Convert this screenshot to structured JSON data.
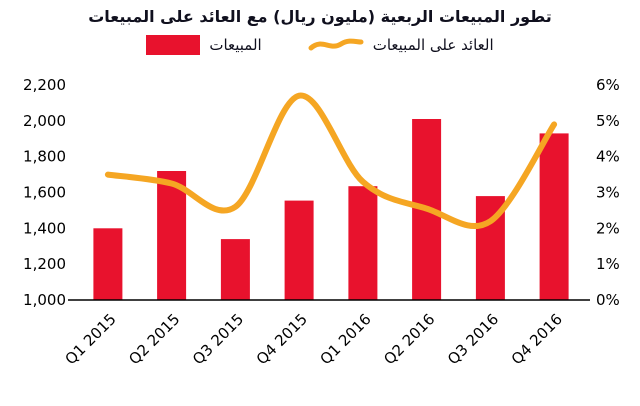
{
  "title": "تطور المبيعات الربعية (مليون ريال) مع العائد على المبيعات",
  "legend": {
    "sales_label": "المبيعات",
    "return_label": "العائد على المبيعات"
  },
  "chart_data": {
    "type": "combo-bar-line",
    "categories": [
      "Q1 2015",
      "Q2 2015",
      "Q3 2015",
      "Q4 2015",
      "Q1 2016",
      "Q2 2016",
      "Q3 2016",
      "Q4 2016"
    ],
    "series": [
      {
        "name": "المبيعات",
        "type": "bar",
        "axis": "left",
        "color": "#E8122D",
        "values": [
          1400,
          1720,
          1340,
          1555,
          1635,
          2010,
          1580,
          1930
        ]
      },
      {
        "name": "العائد على المبيعات",
        "type": "line",
        "axis": "right",
        "color": "#F5A623",
        "values": [
          3.5,
          3.25,
          2.6,
          5.7,
          3.3,
          2.55,
          2.2,
          4.9
        ]
      }
    ],
    "left_axis": {
      "min": 1000,
      "max": 2200,
      "step": 200,
      "tick_labels": [
        "1,000",
        "1,200",
        "1,400",
        "1,600",
        "1,800",
        "2,000",
        "2,200"
      ]
    },
    "right_axis": {
      "min": 0,
      "max": 6,
      "step": 1,
      "tick_labels": [
        "0%",
        "1%",
        "2%",
        "3%",
        "4%",
        "5%",
        "6%"
      ]
    },
    "grid": false,
    "legend_position": "top",
    "category_label_rotation": -45
  }
}
